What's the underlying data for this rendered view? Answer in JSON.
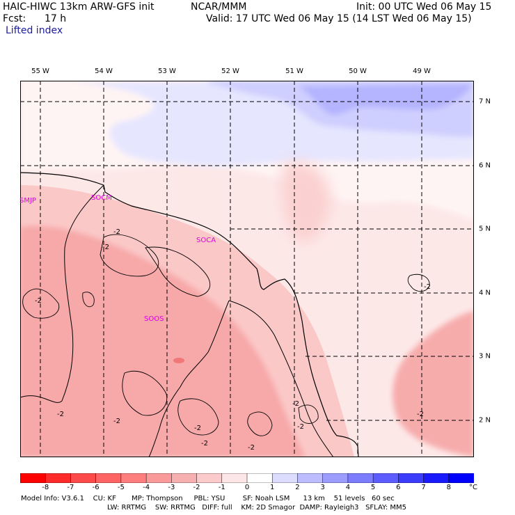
{
  "header": {
    "model": "HAIC-HIWC 13km ARW-GFS init",
    "org": "NCAR/MMM",
    "init": "Init: 00 UTC Wed 06 May 15",
    "fcst_label": "Fcst:",
    "fcst_value": "17 h",
    "valid": "Valid: 17 UTC Wed 06 May 15 (14 LST Wed 06 May 15)",
    "field": "Lifted index"
  },
  "longitudes": [
    "55 W",
    "54 W",
    "53 W",
    "52 W",
    "51 W",
    "50 W",
    "49 W"
  ],
  "latitudes": [
    "7 N",
    "6 N",
    "5 N",
    "4 N",
    "3 N",
    "2 N"
  ],
  "stations": [
    "SMJP",
    "SOCM",
    "SOCA",
    "SOOS"
  ],
  "contour_label": "-2",
  "colorbar": {
    "ticks": [
      "-8",
      "-7",
      "-6",
      "-5",
      "-4",
      "-3",
      "-2",
      "-1",
      "0",
      "1",
      "2",
      "3",
      "4",
      "5",
      "6",
      "7",
      "8"
    ],
    "unit": "°C",
    "colors": [
      "#ff0000",
      "#ff2a2a",
      "#ff4a4a",
      "#ff6464",
      "#ff7e7e",
      "#fb9a9a",
      "#f7b0b0",
      "#fbcaca",
      "#fde6e6",
      "#ffffff",
      "#dcdcff",
      "#bcbcff",
      "#9c9cff",
      "#7c7cff",
      "#5c5cff",
      "#3c3cff",
      "#1a1aff",
      "#0000ff"
    ]
  },
  "model_info": {
    "line1": "Model Info: V3.6.1    CU: KF       MP: Thompson     PBL: YSU        SF: Noah LSM      13 km    51 levels   60 sec",
    "line2": "LW: RRTMG    SW: RRTMG   DIFF: full    KM: 2D Smagor  DAMP: Rayleigh3   SFLAY: MM5"
  }
}
